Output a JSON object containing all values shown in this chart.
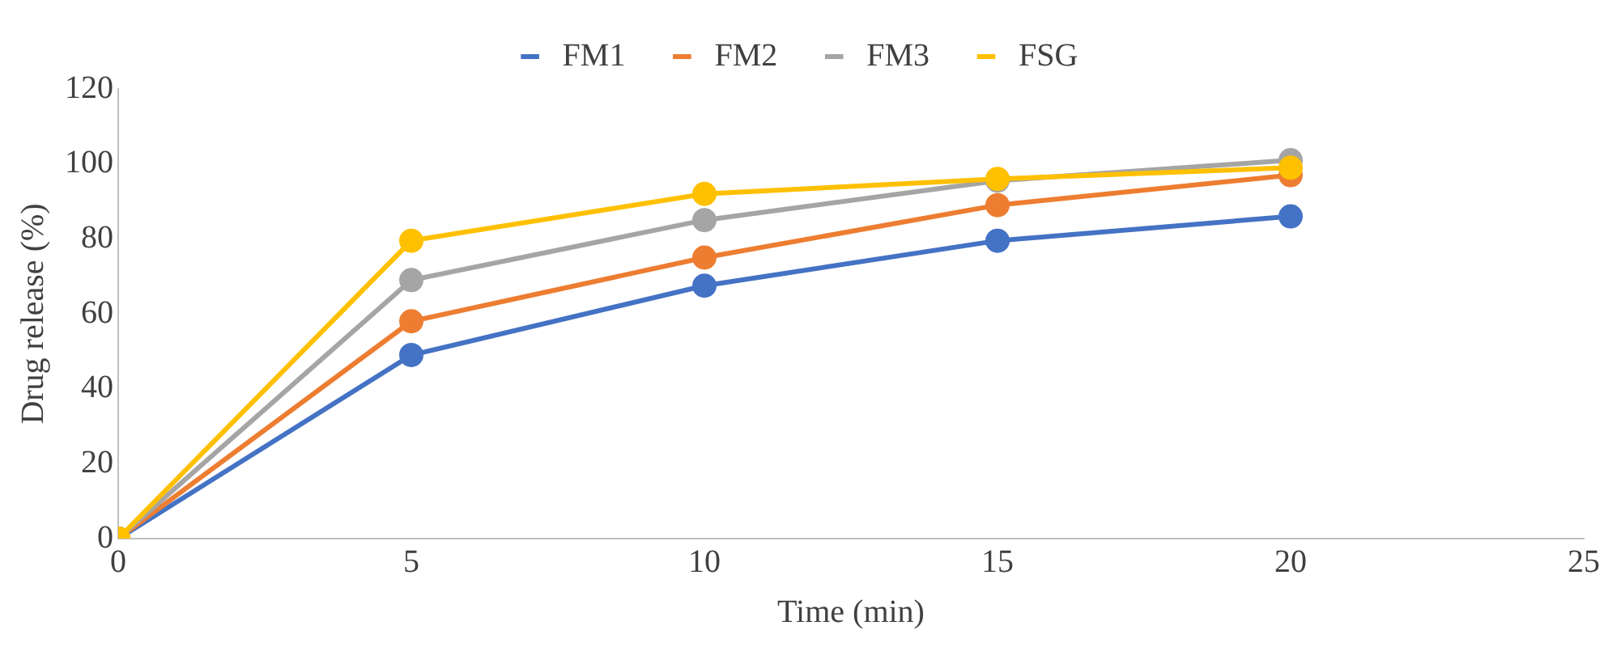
{
  "chart_data": {
    "type": "line",
    "xlabel": "Time (min)",
    "ylabel": "Drug release (%)",
    "x": [
      0,
      5,
      10,
      15,
      20
    ],
    "series": [
      {
        "name": "FM1",
        "color": "#4472c4",
        "values": [
          0,
          49,
          67.5,
          79.5,
          86
        ]
      },
      {
        "name": "FM2",
        "color": "#ed7d31",
        "values": [
          0,
          58,
          75,
          89,
          97
        ]
      },
      {
        "name": "FM3",
        "color": "#a5a5a5",
        "values": [
          0,
          69,
          85,
          95.5,
          101
        ]
      },
      {
        "name": "FSG",
        "color": "#ffc000",
        "values": [
          0,
          79.5,
          92,
          96,
          99
        ]
      }
    ],
    "xlim": [
      0,
      25
    ],
    "xticks": [
      0,
      5,
      10,
      15,
      20,
      25
    ],
    "ylim": [
      0,
      120
    ],
    "yticks": [
      0,
      20,
      40,
      60,
      80,
      100,
      120
    ],
    "grid": false,
    "legend": "top",
    "marker": "circle",
    "line_style": "solid"
  }
}
